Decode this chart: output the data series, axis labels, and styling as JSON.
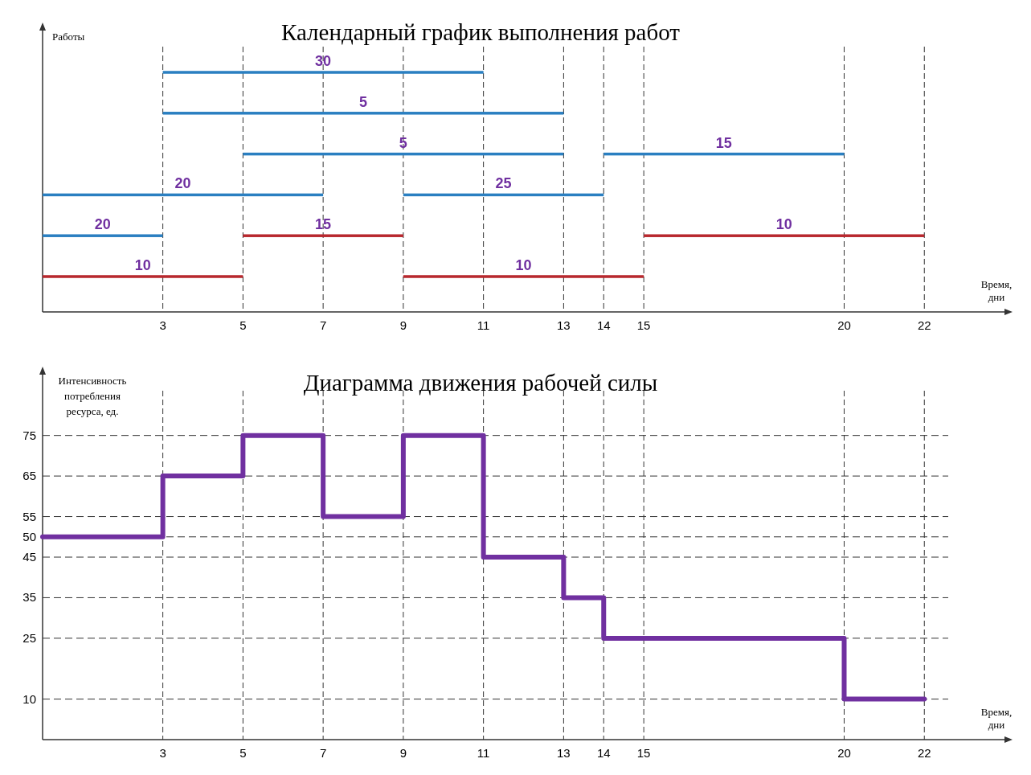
{
  "chart_data": [
    {
      "type": "bar",
      "orientation": "horizontal",
      "title": "Календарный график выполнения работ",
      "xlabel": "Время, дни",
      "ylabel": "Работы",
      "categories": [
        null,
        null,
        null,
        null,
        null,
        null
      ],
      "xlim": [
        0,
        24
      ],
      "xticks": [
        3,
        5,
        7,
        9,
        11,
        13,
        14,
        15,
        20,
        22
      ],
      "grid": "x",
      "series": [
        {
          "values": [
            8,
            10,
            8,
            7,
            3,
            5
          ],
          "base": [
            3,
            3,
            5,
            0,
            0,
            0
          ],
          "colors": [
            "#2a7fc1",
            "#2a7fc1",
            "#2a7fc1",
            "#2a7fc1",
            "#2a7fc1",
            "#b8282e"
          ]
        },
        {
          "values": [
            null,
            null,
            6,
            5,
            4,
            6
          ],
          "base": [
            null,
            null,
            14,
            9,
            5,
            9
          ],
          "colors": [
            null,
            null,
            "#2a7fc1",
            "#2a7fc1",
            "#b8282e",
            "#b8282e"
          ]
        },
        {
          "values": [
            null,
            null,
            null,
            null,
            7,
            null
          ],
          "base": [
            null,
            null,
            null,
            null,
            15,
            null
          ],
          "colors": [
            null,
            null,
            null,
            null,
            "#b8282e",
            null
          ]
        }
      ],
      "annotations": [
        "30",
        "5",
        "5",
        "20",
        "20",
        "10",
        "15",
        "25",
        "15",
        "10",
        "10"
      ]
    },
    {
      "type": "step",
      "title": "Диаграмма движения рабочей силы",
      "xlabel": "Время, дни",
      "ylabel": "Интенсивность потребления ресурса, ед.",
      "xlim": [
        0,
        24
      ],
      "xticks": [
        3,
        5,
        7,
        9,
        11,
        13,
        14,
        15,
        20,
        22
      ],
      "ylim": [
        0,
        90
      ],
      "yticks": [
        10,
        25,
        35,
        45,
        50,
        55,
        65,
        75
      ],
      "grid": true,
      "series": [
        {
          "color": "#7030a0",
          "x": [
            0,
            3,
            5,
            7,
            9,
            11,
            13,
            14,
            15,
            20,
            22
          ],
          "values": [
            50,
            65,
            75,
            55,
            75,
            45,
            35,
            25,
            25,
            10,
            10
          ]
        }
      ]
    }
  ]
}
